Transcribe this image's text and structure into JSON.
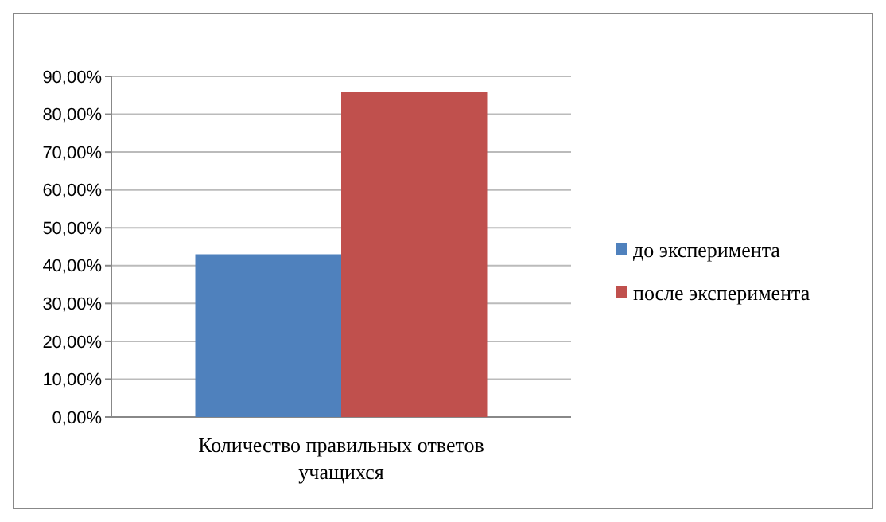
{
  "chart_data": {
    "type": "bar",
    "categories": [
      "Количество правильных  ответов учащихся"
    ],
    "series": [
      {
        "name": "до эксперимента",
        "color": "#4f81bd",
        "values": [
          43
        ]
      },
      {
        "name": "после эксперимента",
        "color": "#c0504d",
        "values": [
          86
        ]
      }
    ],
    "ylim": [
      0,
      90
    ],
    "yticks": [
      {
        "value": 0,
        "label": "0,00%"
      },
      {
        "value": 10,
        "label": "10,00%"
      },
      {
        "value": 20,
        "label": "20,00%"
      },
      {
        "value": 30,
        "label": "30,00%"
      },
      {
        "value": 40,
        "label": "40,00%"
      },
      {
        "value": 50,
        "label": "50,00%"
      },
      {
        "value": 60,
        "label": "60,00%"
      },
      {
        "value": 70,
        "label": "70,00%"
      },
      {
        "value": 80,
        "label": "80,00%"
      },
      {
        "value": 90,
        "label": "90,00%"
      }
    ],
    "grid": true,
    "legend": "right"
  }
}
